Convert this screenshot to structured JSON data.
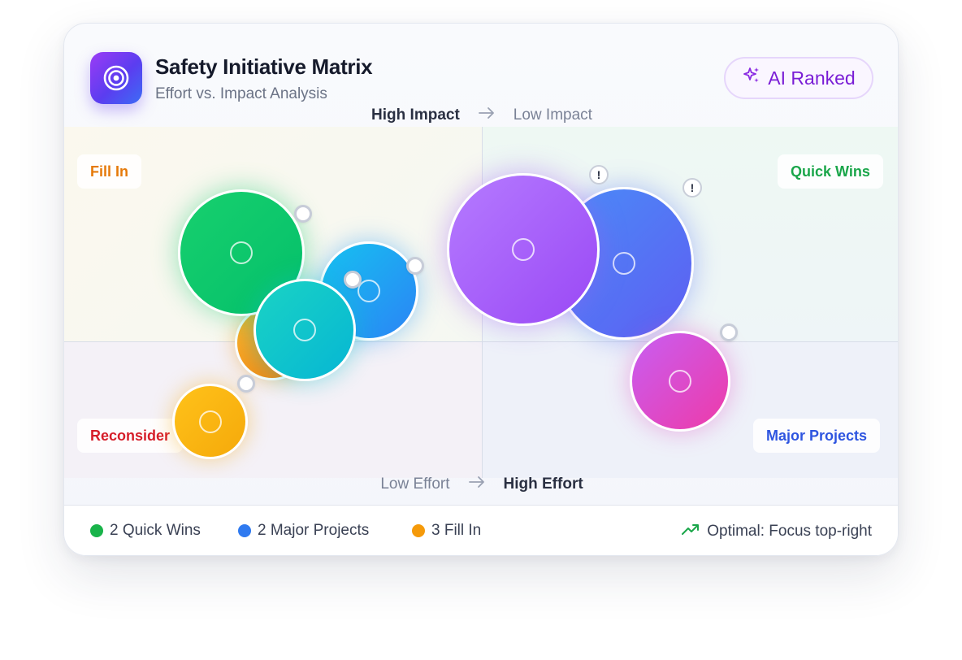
{
  "header": {
    "title": "Safety Initiative Matrix",
    "subtitle": "Effort vs. Impact Analysis",
    "app_icon": "target-icon",
    "badge_label": "AI Ranked",
    "badge_icon": "sparkles-icon"
  },
  "axes": {
    "impact_start": "High Impact",
    "impact_end": "Low Impact",
    "effort_start": "Low Effort",
    "effort_end": "High Effort"
  },
  "quadrants": {
    "top_left": "Fill In",
    "top_right": "Quick Wins",
    "bottom_left": "Reconsider",
    "bottom_right": "Major Projects"
  },
  "colors": {
    "quick_wins": "#1aa64a",
    "major_projects": "#2f6ef0",
    "fill_in": "#f08c0a",
    "reconsider": "#d61e2a",
    "accent": "#7a1ed6"
  },
  "footer": {
    "legend": [
      {
        "label": "2 Quick Wins",
        "color": "#19b34a"
      },
      {
        "label": "2 Major Projects",
        "color": "#2f7af0"
      },
      {
        "label": "3 Fill In",
        "color": "#f59a0a"
      }
    ],
    "optimal_label": "Optimal: Focus top-right",
    "optimal_icon": "trending-up-icon"
  }
}
